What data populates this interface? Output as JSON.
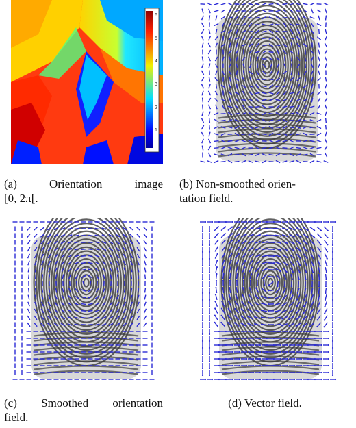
{
  "panel_a": {
    "caption_tag": "(a)",
    "caption_word1": "Orientation",
    "caption_word2": "image",
    "caption_line2": "[0, 2π[.",
    "colorbar_ticks": [
      "6",
      "5",
      "4",
      "3",
      "2",
      "1"
    ]
  },
  "panel_b": {
    "caption_line1": "(b) Non-smoothed orien-",
    "caption_line2": "tation field."
  },
  "panel_c": {
    "caption_tag": "(c)",
    "caption_word1": "Smoothed",
    "caption_word2": "orientation",
    "caption_line2": "field."
  },
  "panel_d": {
    "caption": "(d) Vector field."
  },
  "colors": {
    "field_lines": "#2b2bd6",
    "fingerprint": "#3a3a3a"
  }
}
